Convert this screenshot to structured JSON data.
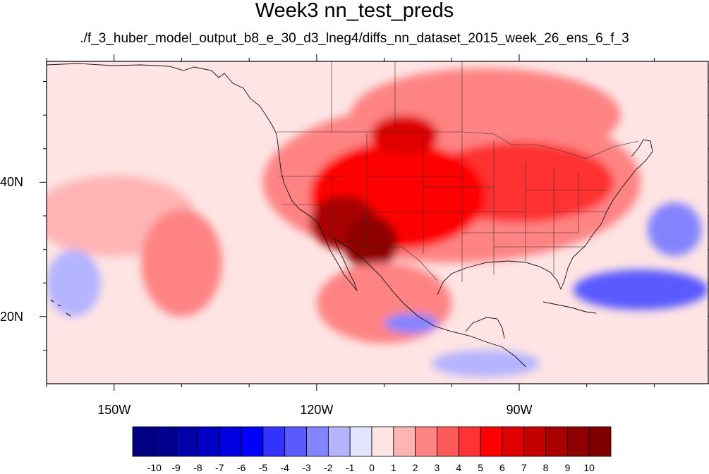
{
  "title": "Week3 nn_test_preds",
  "subtitle": "./f_3_huber_model_output_b8_e_30_d3_lneg4/diffs_nn_dataset_2015_week_26_ens_6_f_3",
  "map": {
    "lon_range": [
      -160,
      -62
    ],
    "lat_range": [
      10,
      58
    ],
    "lat_ticks": [
      {
        "value": 40,
        "label": "40N"
      },
      {
        "value": 20,
        "label": "20N"
      }
    ],
    "lon_ticks": [
      {
        "value": -150,
        "label": "150W"
      },
      {
        "value": -120,
        "label": "120W"
      },
      {
        "value": -90,
        "label": "90W"
      }
    ]
  },
  "colorbar": {
    "boundary_labels": [
      "-10",
      "-9",
      "-8",
      "-7",
      "-6",
      "-5",
      "-4",
      "-3",
      "-2",
      "-1",
      "0",
      "1",
      "2",
      "3",
      "4",
      "5",
      "6",
      "7",
      "8",
      "9",
      "10"
    ],
    "colors": [
      "#000080",
      "#00008f",
      "#0000a8",
      "#0000c4",
      "#0000e0",
      "#0000ff",
      "#3333ff",
      "#5a5aff",
      "#8383ff",
      "#b4b4ff",
      "#e4e4fc",
      "#ffe4e4",
      "#ffb4b4",
      "#ff8383",
      "#ff5a5a",
      "#ff3333",
      "#ff0000",
      "#e00000",
      "#c40000",
      "#a80000",
      "#8f0000",
      "#800000"
    ]
  },
  "anomaly_regions": [
    {
      "lon": -150,
      "lat": 35,
      "rx": 12,
      "ry": 6,
      "value": 1.5
    },
    {
      "lon": -140,
      "lat": 28,
      "rx": 6,
      "ry": 8,
      "value": 2.5
    },
    {
      "lon": -100,
      "lat": 40,
      "rx": 28,
      "ry": 12,
      "value": 2
    },
    {
      "lon": -95,
      "lat": 50,
      "rx": 20,
      "ry": 7,
      "value": 2.5
    },
    {
      "lon": -90,
      "lat": 40,
      "rx": 14,
      "ry": 6,
      "value": 4
    },
    {
      "lon": -108,
      "lat": 38,
      "rx": 13,
      "ry": 8,
      "value": 5
    },
    {
      "lon": -107,
      "lat": 47,
      "rx": 5,
      "ry": 3,
      "value": 6
    },
    {
      "lon": -116,
      "lat": 34,
      "rx": 5,
      "ry": 4,
      "value": 8
    },
    {
      "lon": -112,
      "lat": 31,
      "rx": 4,
      "ry": 4,
      "value": 9
    },
    {
      "lon": -110,
      "lat": 22,
      "rx": 10,
      "ry": 6,
      "value": 2.5
    },
    {
      "lon": -72,
      "lat": 24,
      "rx": 10,
      "ry": 3,
      "value": -4
    },
    {
      "lon": -67,
      "lat": 33,
      "rx": 4,
      "ry": 4,
      "value": -2.5
    },
    {
      "lon": -156,
      "lat": 25,
      "rx": 4,
      "ry": 5,
      "value": -1.5
    },
    {
      "lon": -106,
      "lat": 19,
      "rx": 4,
      "ry": 1.5,
      "value": -2.5
    },
    {
      "lon": -95,
      "lat": 13,
      "rx": 8,
      "ry": 2,
      "value": -1.5
    }
  ]
}
